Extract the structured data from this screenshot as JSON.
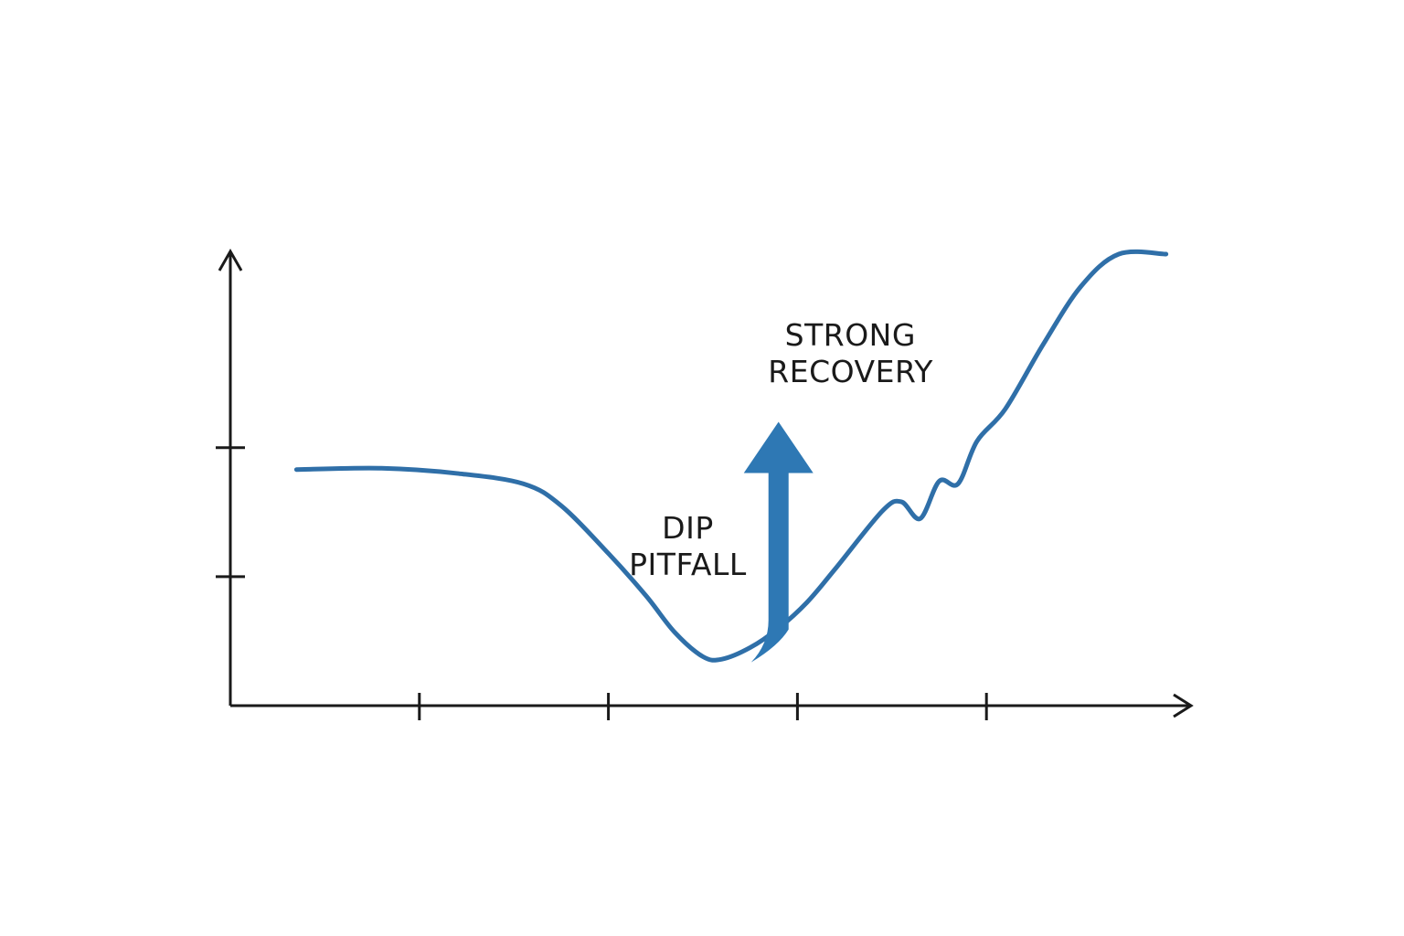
{
  "chart_data": {
    "type": "line",
    "title": "",
    "xlabel": "",
    "ylabel": "",
    "xlim": [
      0,
      5
    ],
    "ylim": [
      0,
      3.5
    ],
    "x_ticks": [
      1,
      2,
      3,
      4
    ],
    "y_ticks": [
      1,
      2
    ],
    "grid": false,
    "line_color": "#2f6fa8",
    "arrow_color": "#2e78b4",
    "axis_color": "#1a1a1a",
    "series": [
      {
        "x": [
          0.35,
          0.8,
          1.2,
          1.55,
          1.75,
          2.0,
          2.2,
          2.35,
          2.5,
          2.6,
          2.75,
          2.9,
          3.05,
          3.2,
          3.45,
          3.55,
          3.65,
          3.75,
          3.85,
          3.95,
          4.1,
          4.3,
          4.5,
          4.7,
          4.95
        ],
        "y": [
          1.83,
          1.84,
          1.8,
          1.72,
          1.55,
          1.18,
          0.85,
          0.57,
          0.38,
          0.36,
          0.45,
          0.6,
          0.8,
          1.06,
          1.51,
          1.58,
          1.45,
          1.74,
          1.72,
          2.05,
          2.3,
          2.8,
          3.25,
          3.5,
          3.5
        ]
      }
    ],
    "annotations": [
      {
        "text": [
          "DIP",
          "PITFALL"
        ],
        "x": 2.42,
        "y": 1.23
      },
      {
        "text": [
          "STRONG",
          "RECOVERY"
        ],
        "x": 3.28,
        "y": 2.73
      }
    ],
    "arrow": {
      "x": 2.9,
      "y_from": 0.52,
      "y_to": 2.2
    }
  }
}
